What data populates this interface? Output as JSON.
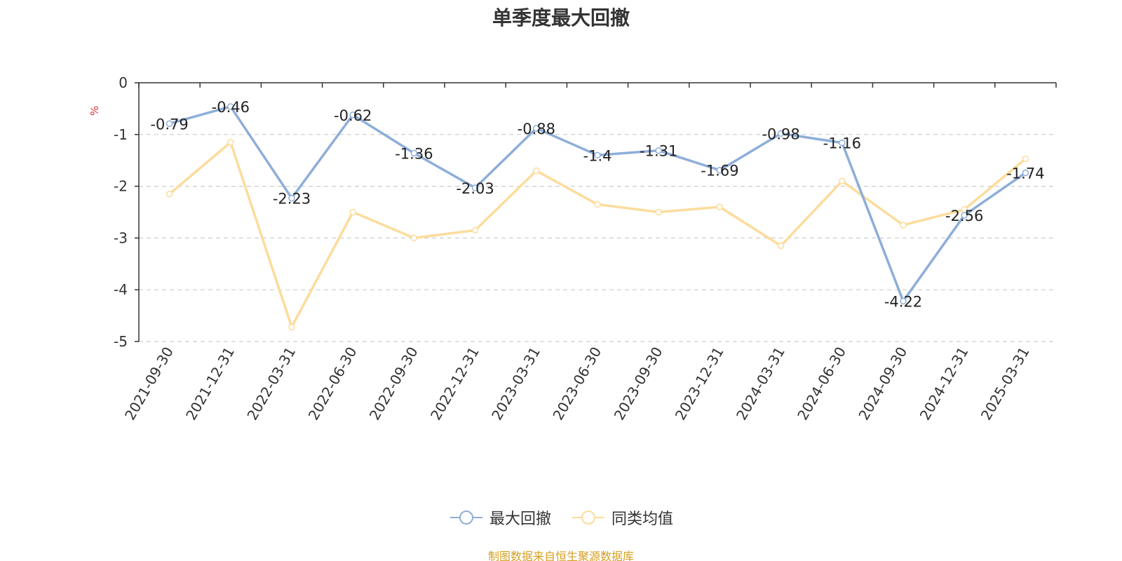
{
  "chart_data": {
    "type": "line",
    "title": "单季度最大回撤",
    "ylabel": "%",
    "xlabel": "",
    "ylim": [
      -5,
      0
    ],
    "yticks": [
      0,
      -1,
      -2,
      -3,
      -4,
      -5
    ],
    "grid": true,
    "legend_position": "bottom-center",
    "categories": [
      "2021-09-30",
      "2021-12-31",
      "2022-03-31",
      "2022-06-30",
      "2022-09-30",
      "2022-12-31",
      "2023-03-31",
      "2023-06-30",
      "2023-09-30",
      "2023-12-31",
      "2024-03-31",
      "2024-06-30",
      "2024-09-30",
      "2024-12-31",
      "2025-03-31"
    ],
    "series": [
      {
        "name": "最大回撤",
        "color": "#8eaed8",
        "show_labels": true,
        "values": [
          -0.79,
          -0.46,
          -2.23,
          -0.62,
          -1.36,
          -2.03,
          -0.88,
          -1.4,
          -1.31,
          -1.69,
          -0.98,
          -1.16,
          -4.22,
          -2.56,
          -1.74
        ]
      },
      {
        "name": "同类均值",
        "color": "#fcdc9c",
        "show_labels": false,
        "values": [
          -2.15,
          -1.15,
          -4.72,
          -2.5,
          -3.0,
          -2.85,
          -1.7,
          -2.35,
          -2.5,
          -2.4,
          -3.15,
          -1.9,
          -2.75,
          -2.45,
          -1.47
        ]
      }
    ]
  },
  "source_text": "制图数据来自恒生聚源数据库"
}
